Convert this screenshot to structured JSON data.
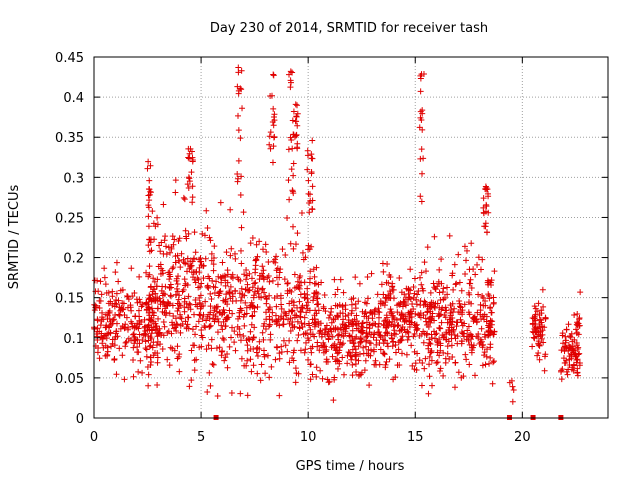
{
  "chart_data": {
    "type": "scatter",
    "title": "Day 230 of 2014, SRMTID for receiver tash",
    "xlabel": "GPS time / hours",
    "ylabel": "SRMTID / TECUs",
    "xlim": [
      0,
      24
    ],
    "ylim": [
      0,
      0.45
    ],
    "xticks": [
      0,
      5,
      10,
      15,
      20
    ],
    "xtick_labels": [
      "0",
      "5",
      "10",
      "15",
      "20"
    ],
    "yticks": [
      0,
      0.05,
      0.1,
      0.15,
      0.2,
      0.25,
      0.3,
      0.35,
      0.4,
      0.45
    ],
    "ytick_labels": [
      "0",
      "0.05",
      "0.1",
      "0.15",
      "0.2",
      "0.25",
      "0.3",
      "0.35",
      "0.4",
      "0.45"
    ],
    "grid": true,
    "marker": "plus",
    "color": "#e00000",
    "gap_markers_x": [
      5.7,
      19.4,
      20.5,
      21.8
    ],
    "clusters": [
      {
        "x": [
          0,
          3
        ],
        "base": 0.115,
        "spread": 0.035,
        "n": 260
      },
      {
        "x": [
          2.5,
          5.5
        ],
        "base": 0.15,
        "spread": 0.06,
        "n": 300
      },
      {
        "x": [
          5.5,
          8.0
        ],
        "base": 0.14,
        "spread": 0.05,
        "n": 240
      },
      {
        "x": [
          8.0,
          10.5
        ],
        "base": 0.13,
        "spread": 0.05,
        "n": 230
      },
      {
        "x": [
          10.5,
          13.0
        ],
        "base": 0.1,
        "spread": 0.035,
        "n": 240
      },
      {
        "x": [
          13.0,
          15.0
        ],
        "base": 0.12,
        "spread": 0.04,
        "n": 200
      },
      {
        "x": [
          15.0,
          17.0
        ],
        "base": 0.12,
        "spread": 0.045,
        "n": 200
      },
      {
        "x": [
          17.0,
          18.7
        ],
        "base": 0.12,
        "spread": 0.045,
        "n": 170
      },
      {
        "x": [
          19.4,
          19.6
        ],
        "base": 0.03,
        "spread": 0.02,
        "n": 6
      },
      {
        "x": [
          20.4,
          21.1
        ],
        "base": 0.11,
        "spread": 0.03,
        "n": 60
      },
      {
        "x": [
          21.8,
          22.7
        ],
        "base": 0.08,
        "spread": 0.03,
        "n": 90
      }
    ],
    "spikes": [
      {
        "x": 2.6,
        "ymin": 0.2,
        "ymax": 0.33
      },
      {
        "x": 4.5,
        "ymin": 0.25,
        "ymax": 0.34
      },
      {
        "x": 6.8,
        "ymin": 0.25,
        "ymax": 0.44
      },
      {
        "x": 8.3,
        "ymin": 0.3,
        "ymax": 0.43
      },
      {
        "x": 9.2,
        "ymin": 0.25,
        "ymax": 0.44
      },
      {
        "x": 9.4,
        "ymin": 0.3,
        "ymax": 0.4
      },
      {
        "x": 10.1,
        "ymin": 0.25,
        "ymax": 0.35
      },
      {
        "x": 15.3,
        "ymin": 0.25,
        "ymax": 0.43
      },
      {
        "x": 18.3,
        "ymin": 0.22,
        "ymax": 0.29
      }
    ]
  }
}
